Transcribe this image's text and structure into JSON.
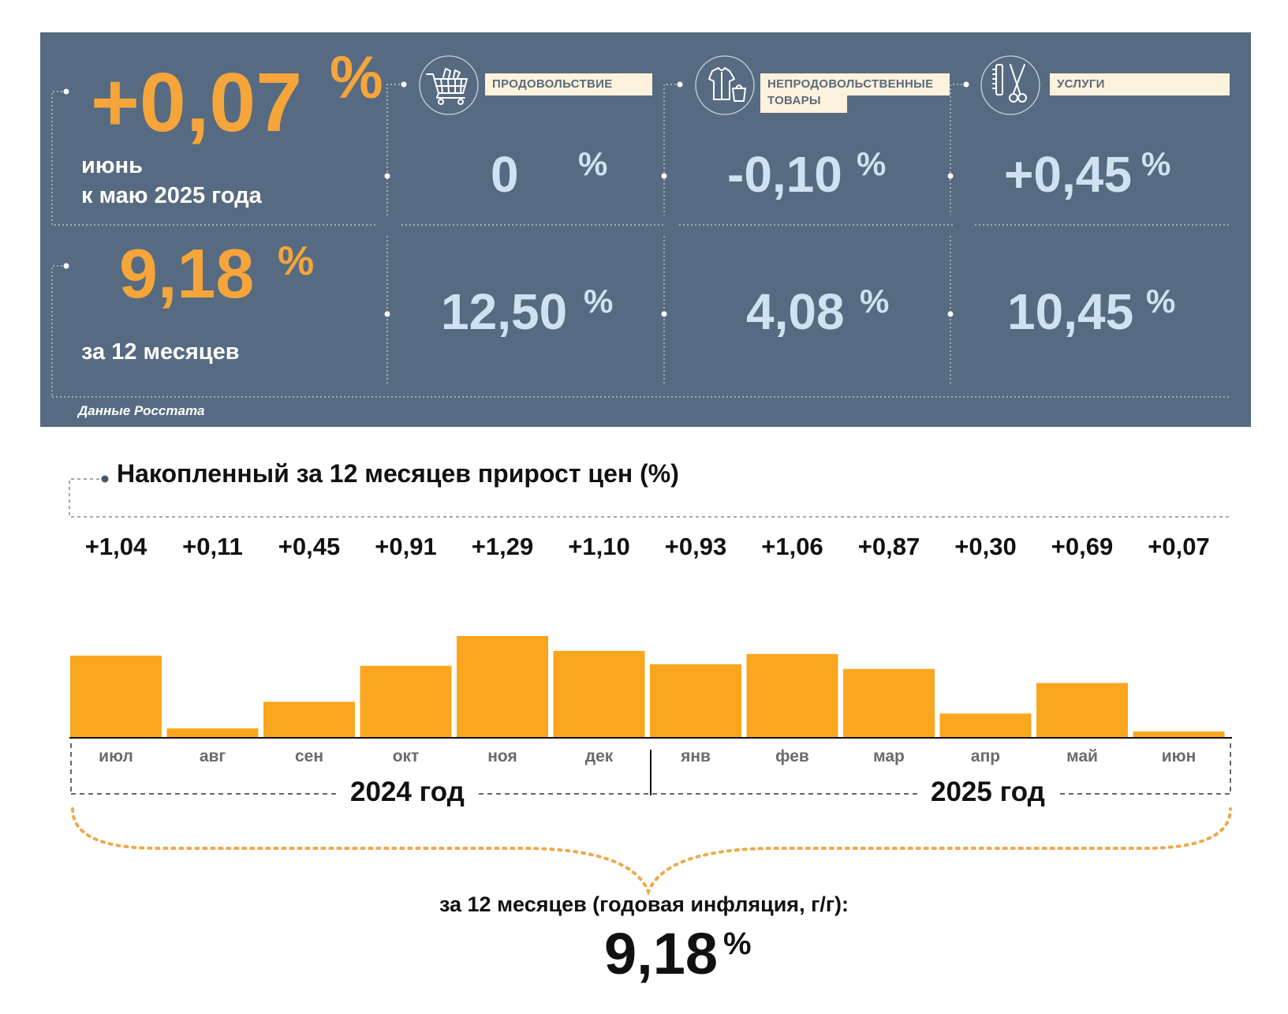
{
  "panel": {
    "monthly": {
      "value": "+0,07",
      "unit": "%",
      "label_line1": "июнь",
      "label_line2": "к маю 2025 года"
    },
    "annual": {
      "value": "9,18",
      "unit": "%",
      "label": "за 12 месяцев"
    },
    "source": "Данные Росстата",
    "categories": [
      {
        "name": "ПРОДОВОЛЬСТВИЕ",
        "icon": "shopping-cart-icon",
        "monthly": "0",
        "annual": "12,50",
        "unit": "%"
      },
      {
        "name": "НЕПРОДОВОЛЬСТВЕННЫЕ ТОВАРЫ",
        "name_line1": "НЕПРОДОВОЛЬСТВЕННЫЕ",
        "name_line2": "ТОВАРЫ",
        "icon": "clothing-bag-icon",
        "monthly": "-0,10",
        "annual": "4,08",
        "unit": "%"
      },
      {
        "name": "УСЛУГИ",
        "icon": "comb-scissors-icon",
        "monthly": "+0,45",
        "annual": "10,45",
        "unit": "%"
      }
    ],
    "colors": {
      "background": "#566b81",
      "accent": "#f5a53a",
      "value_blue": "#cfe2f2",
      "label_bg": "#fdf2dc"
    }
  },
  "chart_data": {
    "type": "bar",
    "title": "Накопленный за 12 месяцев прирост цен (%)",
    "categories": [
      "июл",
      "авг",
      "сен",
      "окт",
      "ноя",
      "дек",
      "янв",
      "фев",
      "мар",
      "апр",
      "май",
      "июн"
    ],
    "values": [
      1.04,
      0.11,
      0.45,
      0.91,
      1.29,
      1.1,
      0.93,
      1.06,
      0.87,
      0.3,
      0.69,
      0.07
    ],
    "value_labels": [
      "+1,04",
      "+0,11",
      "+0,45",
      "+0,91",
      "+1,29",
      "+1,10",
      "+0,93",
      "+1,06",
      "+0,87",
      "+0,30",
      "+0,69",
      "+0,07"
    ],
    "years": [
      {
        "label": "2024 год",
        "months": 6
      },
      {
        "label": "2025 год",
        "months": 6
      }
    ],
    "ylim": [
      0,
      1.29
    ],
    "grid": false,
    "bar_color": "#fba61f",
    "annual_caption": "за 12 месяцев (годовая инфляция, г/г):",
    "annual_value": "9,18",
    "annual_unit": "%"
  }
}
